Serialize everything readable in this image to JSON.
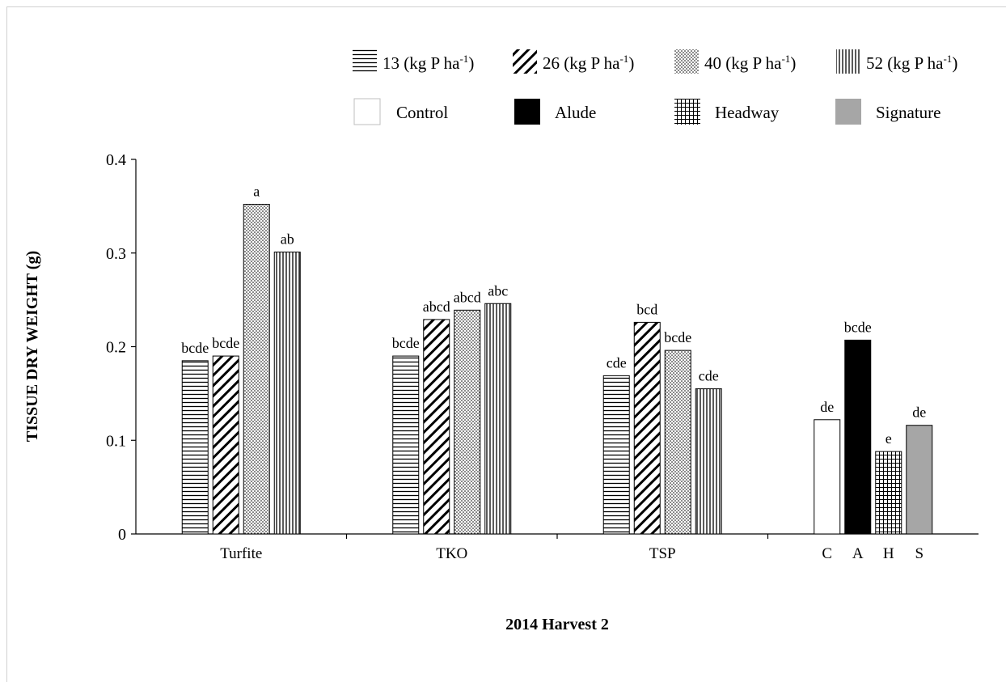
{
  "chart_data": {
    "type": "bar",
    "title": "",
    "xlabel": "2014 Harvest 2",
    "ylabel": "TISSUE DRY WEIGHT (g)",
    "ylim": [
      0,
      0.4
    ],
    "yticks": [
      "0",
      "0.1",
      "0.2",
      "0.3",
      "0.4"
    ],
    "grid": false,
    "legend_placement": "top",
    "rate_legend": [
      {
        "value": "13",
        "text_pre": " (kg P ha",
        "sup": "-1",
        "text_post": ")",
        "pattern": "horizontal-lines"
      },
      {
        "value": "26",
        "text_pre": " (kg P ha",
        "sup": "-1",
        "text_post": ")",
        "pattern": "diagonal-lines"
      },
      {
        "value": "40",
        "text_pre": " (kg P ha",
        "sup": "-1",
        "text_post": ")",
        "pattern": "dots"
      },
      {
        "value": "52",
        "text_pre": " (kg P ha",
        "sup": "-1",
        "text_post": ")",
        "pattern": "vertical-lines"
      }
    ],
    "product_legend": [
      {
        "label": "Control",
        "pattern": "white"
      },
      {
        "label": "Alude",
        "pattern": "black"
      },
      {
        "label": "Headway",
        "pattern": "grid"
      },
      {
        "label": "Signature",
        "pattern": "gray"
      }
    ],
    "groups": [
      {
        "category": "Turfite",
        "bars": [
          {
            "series": "13",
            "value": 0.185,
            "label": "bcde"
          },
          {
            "series": "26",
            "value": 0.19,
            "label": "bcde"
          },
          {
            "series": "40",
            "value": 0.352,
            "label": "a"
          },
          {
            "series": "52",
            "value": 0.301,
            "label": "ab"
          }
        ]
      },
      {
        "category": "TKO",
        "bars": [
          {
            "series": "13",
            "value": 0.19,
            "label": "bcde"
          },
          {
            "series": "26",
            "value": 0.229,
            "label": "abcd"
          },
          {
            "series": "40",
            "value": 0.239,
            "label": "abcd"
          },
          {
            "series": "52",
            "value": 0.246,
            "label": "abc"
          }
        ]
      },
      {
        "category": "TSP",
        "bars": [
          {
            "series": "13",
            "value": 0.169,
            "label": "cde"
          },
          {
            "series": "26",
            "value": 0.226,
            "label": "bcd"
          },
          {
            "series": "40",
            "value": 0.196,
            "label": "bcde"
          },
          {
            "series": "52",
            "value": 0.155,
            "label": "cde"
          }
        ]
      },
      {
        "category": "C  A  H  S",
        "sub_labels": [
          "C",
          "A",
          "H",
          "S"
        ],
        "bars": [
          {
            "series": "Control",
            "value": 0.122,
            "label": "de"
          },
          {
            "series": "Alude",
            "value": 0.207,
            "label": "bcde"
          },
          {
            "series": "Headway",
            "value": 0.088,
            "label": "e"
          },
          {
            "series": "Signature",
            "value": 0.116,
            "label": "de"
          }
        ]
      }
    ]
  },
  "colors": {
    "bar_stroke": "#000000",
    "pattern_ink": "#000000",
    "gray_fill": "#a6a6a6",
    "black_fill": "#000000",
    "white_fill": "#ffffff"
  }
}
